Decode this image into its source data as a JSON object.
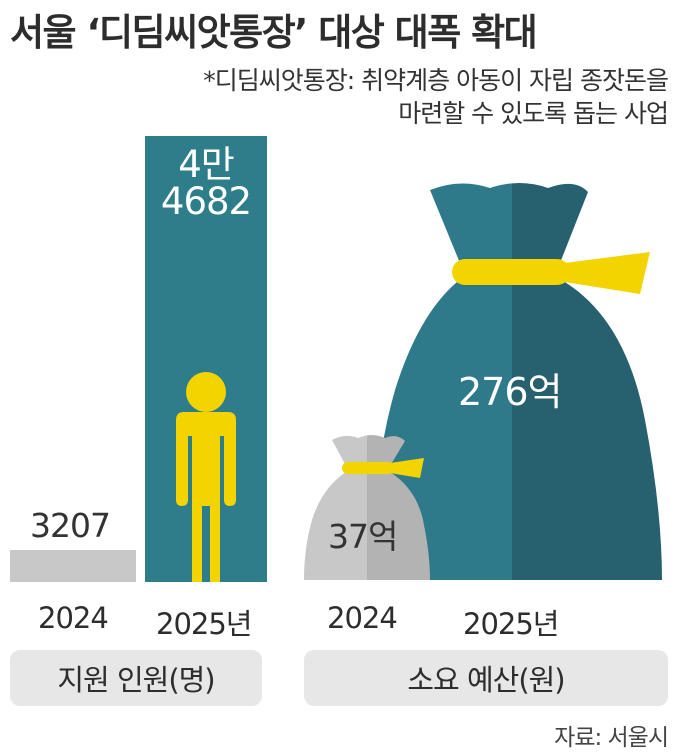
{
  "header": {
    "title": "서울 ‘디딤씨앗통장’ 대상 대폭 확대",
    "subtitle_line1": "*디딤씨앗통장: 취약계층 아동이 자립 종잣돈을",
    "subtitle_line2": "마련할 수 있도록 돕는 사업"
  },
  "chart_data": [
    {
      "type": "bar",
      "name": "지원 인원(명)",
      "categories": [
        "2024",
        "2025년"
      ],
      "values": [
        3207,
        44682
      ],
      "value_labels": [
        "3207",
        "4만 4682"
      ],
      "value_label_line1": "4만",
      "value_label_line2": "4682",
      "xlabel": "지원 인원(명)",
      "colors": [
        "#c8c8c8",
        "#2e7d8a"
      ],
      "icon": "person-icon",
      "icon_color": "#f3d400"
    },
    {
      "type": "bar",
      "name": "소요 예산(원)",
      "categories": [
        "2024",
        "2025년"
      ],
      "values": [
        37,
        276
      ],
      "unit": "억",
      "value_labels": [
        "37억",
        "276억"
      ],
      "xlabel": "소요 예산(원)",
      "colors": [
        "#bdbdbd",
        "#2b6e7e"
      ],
      "icon": "money-bag-icon",
      "tie_color": "#f3d400"
    }
  ],
  "source": "자료: 서울시"
}
